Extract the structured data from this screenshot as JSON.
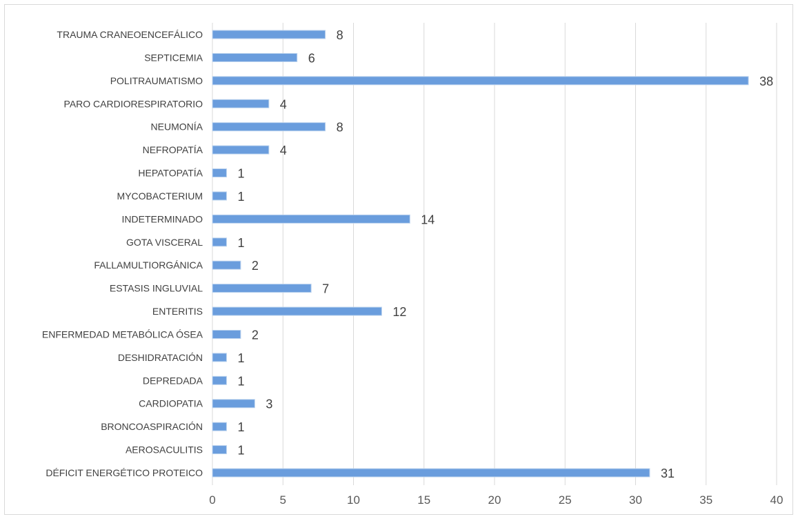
{
  "chart_data": {
    "type": "bar",
    "orientation": "horizontal",
    "categories": [
      "TRAUMA CRANEOENCEFÁLICO",
      "SEPTICEMIA",
      "POLITRAUMATISMO",
      "PARO CARDIORESPIRATORIO",
      "NEUMONÍA",
      "NEFROPATÍA",
      "HEPATOPATÍA",
      "MYCOBACTERIUM",
      "INDETERMINADO",
      "GOTA VISCERAL",
      "FALLAMULTIORGÁNICA",
      "ESTASIS INGLUVIAL",
      "ENTERITIS",
      "ENFERMEDAD METABÓLICA ÓSEA",
      "DESHIDRATACIÓN",
      "DEPREDADA",
      "CARDIOPATIA",
      "BRONCOASPIRACIÓN",
      "AEROSACULITIS",
      "DÉFICIT ENERGÉTICO PROTEICO"
    ],
    "values": [
      8,
      6,
      38,
      4,
      8,
      4,
      1,
      1,
      14,
      1,
      2,
      7,
      12,
      2,
      1,
      1,
      3,
      1,
      1,
      31
    ],
    "xlim": [
      0,
      40
    ],
    "xticks": [
      "0",
      "5",
      "10",
      "15",
      "20",
      "25",
      "30",
      "35",
      "40"
    ],
    "grid": "vertical",
    "data_labels": true,
    "bar_color": "#6a9ddd",
    "bar_edge_color": "#bcd3ee",
    "grid_color": "#d9d9d9"
  }
}
